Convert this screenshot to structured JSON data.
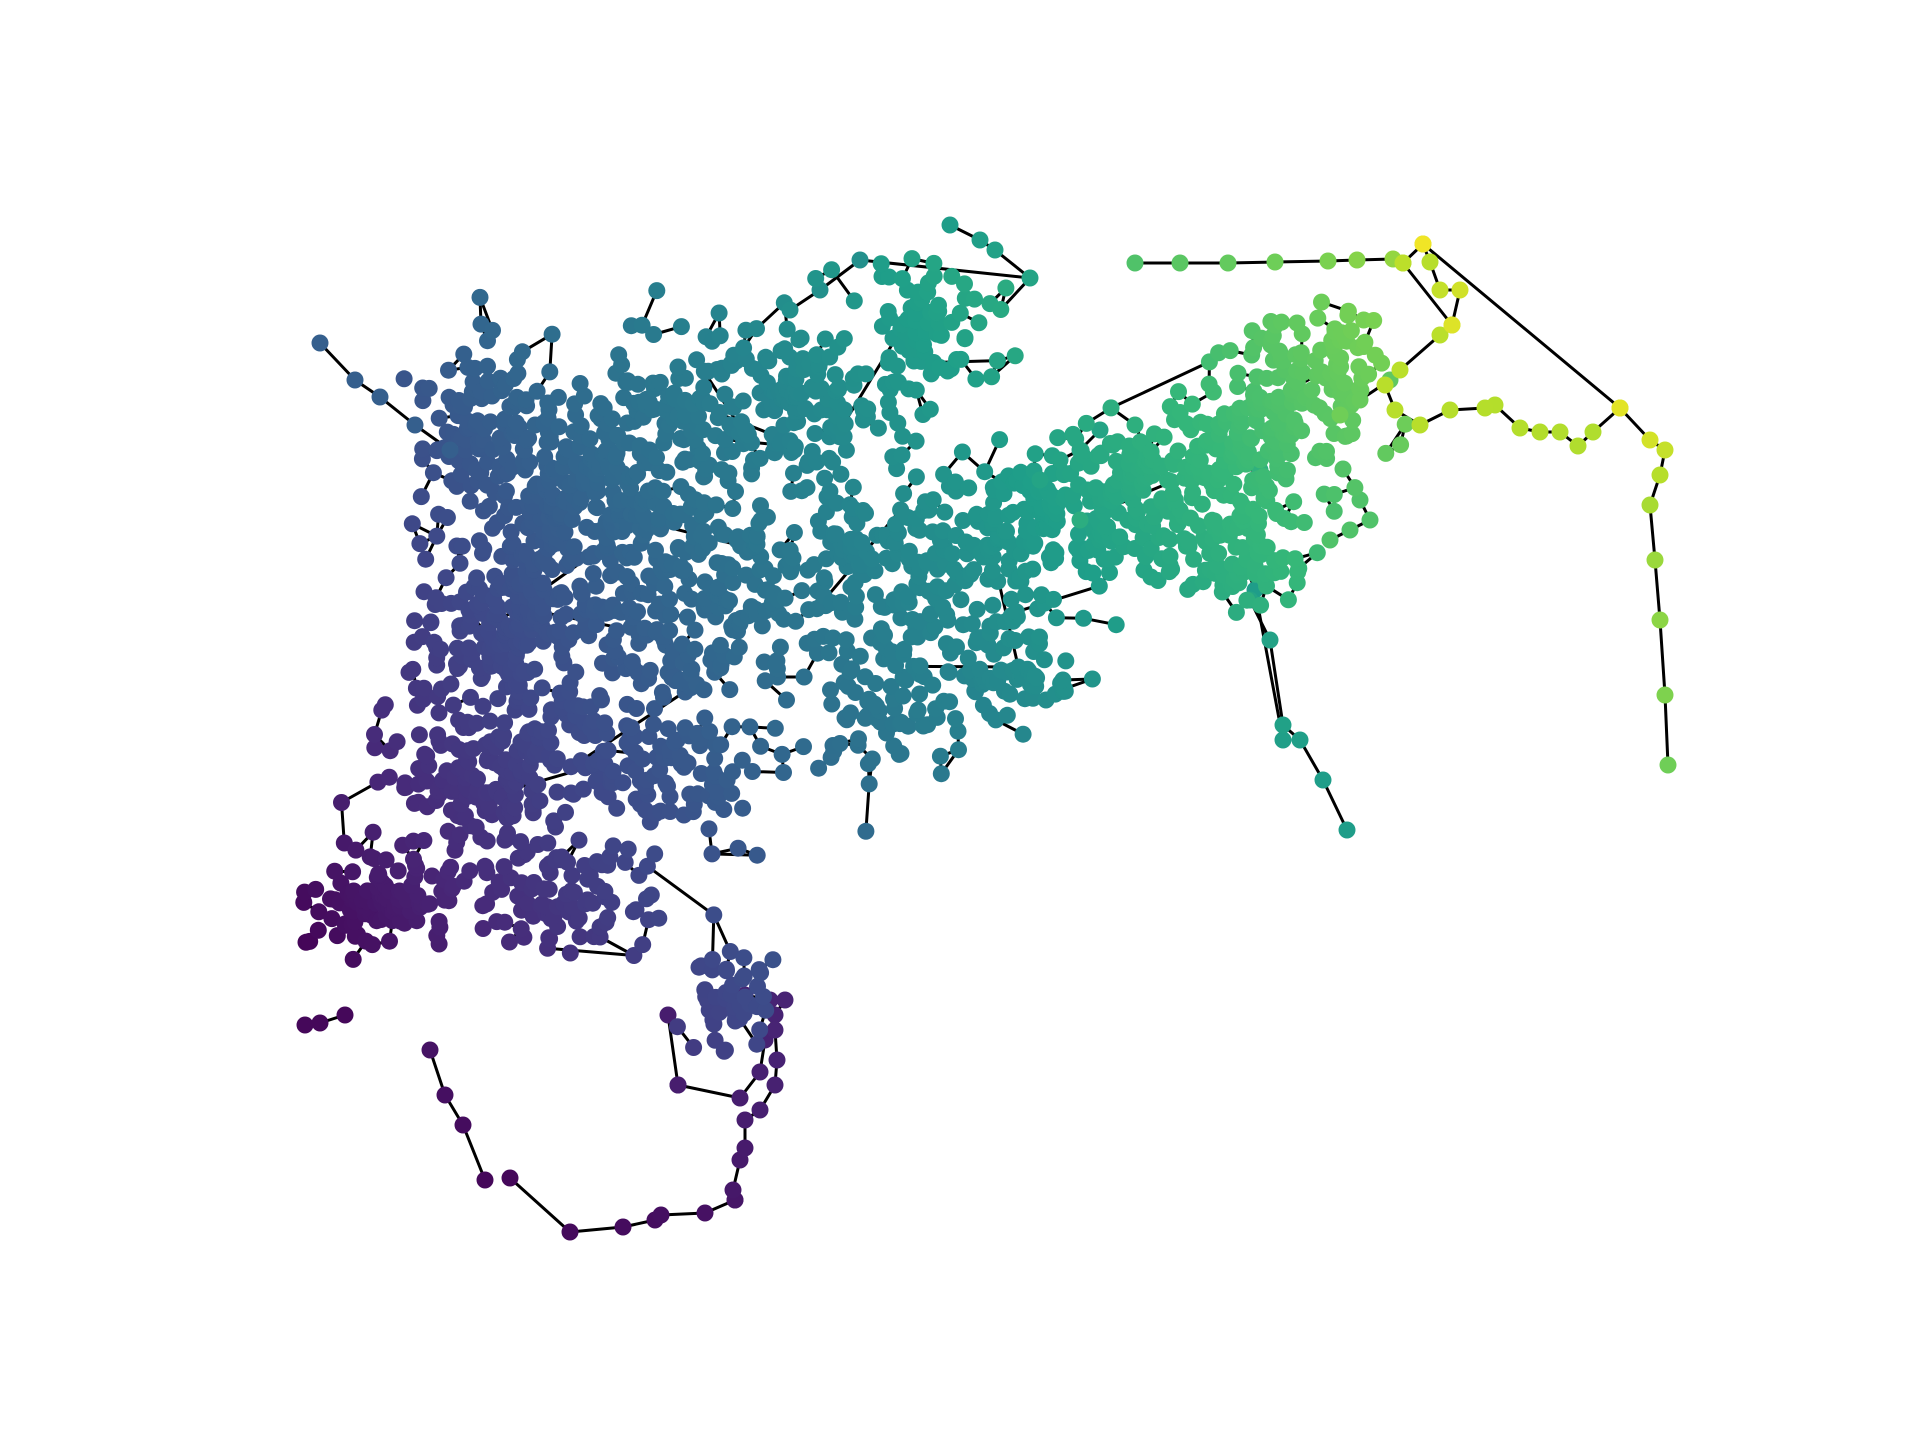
{
  "graph": {
    "type": "network",
    "edge_color": "#000000",
    "node_colormap": "viridis",
    "colormap_stops": [
      "#440154",
      "#482878",
      "#3e4989",
      "#31688e",
      "#26828e",
      "#1f9e89",
      "#35b779",
      "#6ece58",
      "#b5de2b",
      "#fde725"
    ],
    "axes_visible": false,
    "legend": "none"
  }
}
